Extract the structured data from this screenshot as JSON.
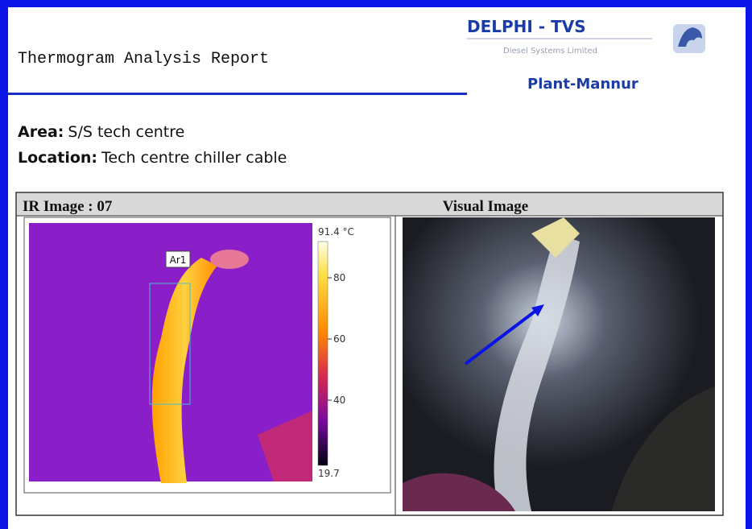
{
  "header": {
    "title": "Thermogram Analysis Report",
    "company": "DELPHI - TVS",
    "company_sub": "Diesel Systems Limited",
    "plant": "Plant-Mannur"
  },
  "info": {
    "area_label": "Area:",
    "area": "S/S tech centre",
    "location_label": "Location:",
    "location": "Tech centre chiller cable"
  },
  "panels": {
    "ir_title": "IR Image : 07",
    "visual_title": "Visual Image",
    "roi_label": "Ar1",
    "scale": {
      "max": "91.4 °C",
      "ticks": [
        "80",
        "60",
        "40"
      ],
      "min": "19.7"
    }
  }
}
